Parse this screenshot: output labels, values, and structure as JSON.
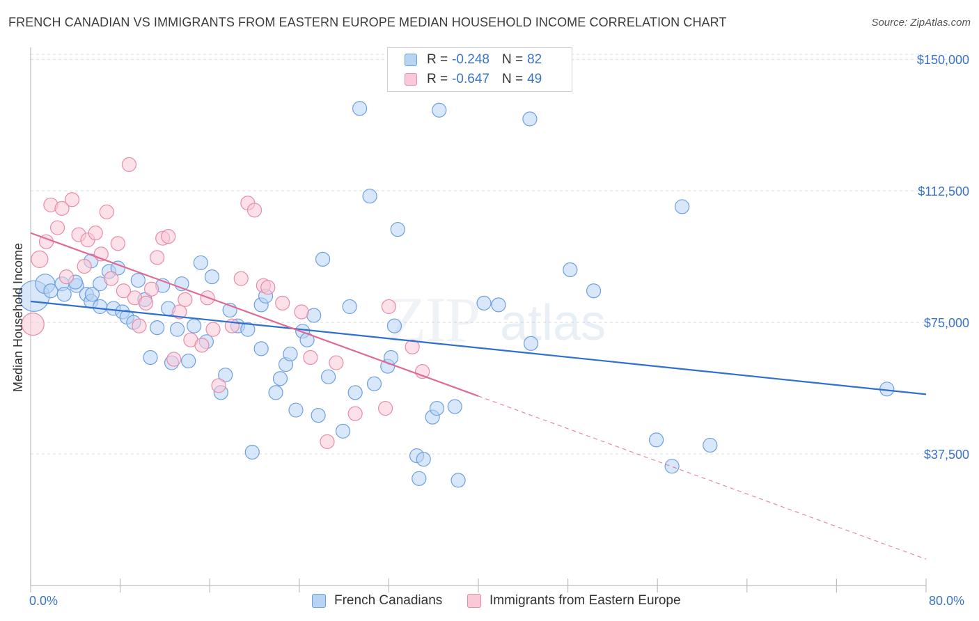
{
  "title": "FRENCH CANADIAN VS IMMIGRANTS FROM EASTERN EUROPE MEDIAN HOUSEHOLD INCOME CORRELATION CHART",
  "source": "Source: ZipAtlas.com",
  "watermark": {
    "zip": "ZIP",
    "atlas": "atlas"
  },
  "legend": {
    "rows": [
      {
        "r_label": "R =",
        "r_value": "-0.248",
        "n_label": "N =",
        "n_value": "82",
        "color": "#b8d4f4",
        "border": "#6c9fe0"
      },
      {
        "r_label": "R =",
        "r_value": "-0.647",
        "n_label": "N =",
        "n_value": "49",
        "color": "#f9c9d7",
        "border": "#e98aa6"
      }
    ]
  },
  "bottom_legend": [
    {
      "label": "French Canadians",
      "color": "#b8d4f4",
      "border": "#6c9fe0"
    },
    {
      "label": "Immigrants from Eastern Europe",
      "color": "#f9c9d7",
      "border": "#e98aa6"
    }
  ],
  "chart_data": {
    "type": "scatter",
    "xlabel": "",
    "ylabel": "Median Household Income",
    "xlim": [
      0,
      80
    ],
    "ylim": [
      0,
      155000
    ],
    "x_tick_labels": {
      "min": "0.0%",
      "max": "80.0%"
    },
    "y_ticks": [
      {
        "value": 150000,
        "label": "$150,000"
      },
      {
        "value": 112500,
        "label": "$112,500"
      },
      {
        "value": 75000,
        "label": "$75,000"
      },
      {
        "value": 37500,
        "label": "$37,500"
      }
    ],
    "grid": true,
    "series": [
      {
        "name": "French Canadians",
        "color": "#6c9fe0",
        "fill": "#b8d4f4",
        "trend": {
          "x0": 0,
          "y0": 81000,
          "x1": 80,
          "y1": 54500,
          "dashed_to": null,
          "line_color": "#2f6fd0"
        },
        "points": [
          [
            0.3,
            82500,
            22
          ],
          [
            1.3,
            86000,
            14
          ],
          [
            1.8,
            84000,
            10
          ],
          [
            2.8,
            86000,
            10
          ],
          [
            3.0,
            83000,
            10
          ],
          [
            4.1,
            85500,
            10
          ],
          [
            4.0,
            86500,
            10
          ],
          [
            5.0,
            83000,
            10
          ],
          [
            5.4,
            81000,
            10
          ],
          [
            5.5,
            83000,
            10
          ],
          [
            5.4,
            92500,
            10
          ],
          [
            6.2,
            86000,
            10
          ],
          [
            6.2,
            79500,
            10
          ],
          [
            7.0,
            89500,
            10
          ],
          [
            7.4,
            79000,
            10
          ],
          [
            7.8,
            90500,
            10
          ],
          [
            8.2,
            78000,
            10
          ],
          [
            8.6,
            76500,
            10
          ],
          [
            9.2,
            75000,
            10
          ],
          [
            9.6,
            87000,
            10
          ],
          [
            10.2,
            81500,
            10
          ],
          [
            10.7,
            65000,
            10
          ],
          [
            11.3,
            73500,
            10
          ],
          [
            11.8,
            85500,
            10
          ],
          [
            12.3,
            79000,
            10
          ],
          [
            12.6,
            63500,
            10
          ],
          [
            13.1,
            73000,
            10
          ],
          [
            13.5,
            86000,
            10
          ],
          [
            14.1,
            64000,
            10
          ],
          [
            14.6,
            74000,
            10
          ],
          [
            15.2,
            92000,
            10
          ],
          [
            15.7,
            69500,
            10
          ],
          [
            16.2,
            88000,
            10
          ],
          [
            17.0,
            55000,
            10
          ],
          [
            17.4,
            60000,
            10
          ],
          [
            17.8,
            78500,
            10
          ],
          [
            18.5,
            74000,
            10
          ],
          [
            19.4,
            73000,
            10
          ],
          [
            19.8,
            38000,
            10
          ],
          [
            20.6,
            80000,
            10
          ],
          [
            20.6,
            67500,
            10
          ],
          [
            21.0,
            82500,
            10
          ],
          [
            21.9,
            55000,
            10
          ],
          [
            22.3,
            59000,
            10
          ],
          [
            22.8,
            63000,
            10
          ],
          [
            23.2,
            66000,
            10
          ],
          [
            23.7,
            50000,
            10
          ],
          [
            24.3,
            72500,
            10
          ],
          [
            24.7,
            70000,
            10
          ],
          [
            25.3,
            77000,
            10
          ],
          [
            25.7,
            48500,
            10
          ],
          [
            26.1,
            93000,
            10
          ],
          [
            26.6,
            59500,
            10
          ],
          [
            27.9,
            44000,
            10
          ],
          [
            28.5,
            79500,
            10
          ],
          [
            29.0,
            55000,
            10
          ],
          [
            29.4,
            136000,
            10
          ],
          [
            30.3,
            111000,
            10
          ],
          [
            30.7,
            57500,
            10
          ],
          [
            31.9,
            62500,
            10
          ],
          [
            32.2,
            65000,
            10
          ],
          [
            32.5,
            74000,
            10
          ],
          [
            32.8,
            101500,
            10
          ],
          [
            34.5,
            37000,
            10
          ],
          [
            34.7,
            30500,
            10
          ],
          [
            35.1,
            36000,
            10
          ],
          [
            35.9,
            48000,
            10
          ],
          [
            36.3,
            50500,
            10
          ],
          [
            36.5,
            135500,
            10
          ],
          [
            37.9,
            51000,
            10
          ],
          [
            38.2,
            30000,
            10
          ],
          [
            40.5,
            80500,
            10
          ],
          [
            41.8,
            80000,
            10
          ],
          [
            44.7,
            69000,
            10
          ],
          [
            44.6,
            133000,
            10
          ],
          [
            48.2,
            90000,
            10
          ],
          [
            50.3,
            84000,
            10
          ],
          [
            55.9,
            41500,
            10
          ],
          [
            57.3,
            34000,
            10
          ],
          [
            58.2,
            108000,
            10
          ],
          [
            60.7,
            40000,
            10
          ],
          [
            76.5,
            56000,
            10
          ]
        ]
      },
      {
        "name": "Immigrants from Eastern Europe",
        "color": "#e98aa6",
        "fill": "#f9c9d7",
        "trend": {
          "x0": 0,
          "y0": 100500,
          "x1": 40,
          "y1": 54000,
          "dashed_to": [
            80,
            7500
          ],
          "line_color": "#df6a94"
        },
        "points": [
          [
            0.2,
            74500,
            16
          ],
          [
            0.8,
            93000,
            12
          ],
          [
            1.4,
            98000,
            10
          ],
          [
            1.8,
            108500,
            10
          ],
          [
            2.4,
            102000,
            10
          ],
          [
            2.8,
            107500,
            10
          ],
          [
            3.2,
            88000,
            10
          ],
          [
            3.7,
            110000,
            10
          ],
          [
            4.3,
            100000,
            10
          ],
          [
            4.8,
            91000,
            10
          ],
          [
            5.1,
            98500,
            10
          ],
          [
            5.8,
            100500,
            10
          ],
          [
            6.3,
            94500,
            10
          ],
          [
            6.8,
            106500,
            10
          ],
          [
            7.2,
            87500,
            10
          ],
          [
            7.8,
            97500,
            10
          ],
          [
            8.3,
            84000,
            10
          ],
          [
            8.8,
            120000,
            10
          ],
          [
            9.3,
            82000,
            10
          ],
          [
            9.7,
            74000,
            10
          ],
          [
            10.3,
            80500,
            10
          ],
          [
            10.8,
            84500,
            10
          ],
          [
            11.3,
            93500,
            10
          ],
          [
            11.8,
            99000,
            10
          ],
          [
            12.3,
            99500,
            10
          ],
          [
            12.8,
            64500,
            10
          ],
          [
            13.3,
            78000,
            10
          ],
          [
            13.8,
            81500,
            10
          ],
          [
            14.3,
            70000,
            10
          ],
          [
            15.3,
            68500,
            10
          ],
          [
            15.8,
            82000,
            10
          ],
          [
            16.3,
            73000,
            10
          ],
          [
            16.8,
            57000,
            10
          ],
          [
            18.0,
            74000,
            10
          ],
          [
            18.8,
            87500,
            10
          ],
          [
            19.4,
            109000,
            10
          ],
          [
            20.0,
            107000,
            10
          ],
          [
            20.8,
            85500,
            10
          ],
          [
            21.2,
            85000,
            10
          ],
          [
            22.5,
            80500,
            10
          ],
          [
            24.2,
            78000,
            10
          ],
          [
            25.0,
            65000,
            10
          ],
          [
            26.5,
            41000,
            10
          ],
          [
            27.3,
            63500,
            10
          ],
          [
            29.0,
            49000,
            10
          ],
          [
            31.7,
            50500,
            10
          ],
          [
            32.0,
            79500,
            10
          ],
          [
            34.1,
            68000,
            10
          ],
          [
            35.0,
            61000,
            10
          ]
        ]
      }
    ]
  }
}
